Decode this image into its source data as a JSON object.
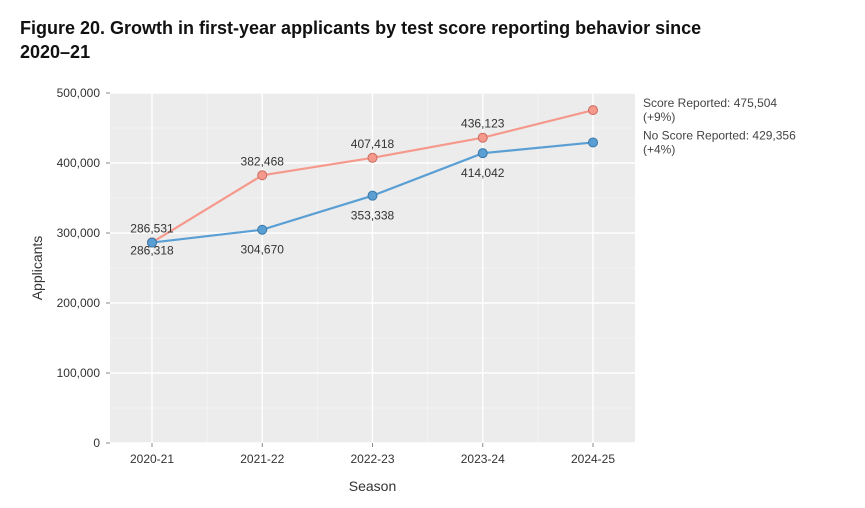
{
  "figure": {
    "title": "Figure 20. Growth in first-year applicants by test score reporting behavior since 2020–21"
  },
  "chart": {
    "type": "line",
    "plot_background": "#ececec",
    "grid_major_color": "#ffffff",
    "grid_minor_color": "#f5f5f5",
    "x": {
      "title": "Season",
      "categories": [
        "2020-21",
        "2021-22",
        "2022-23",
        "2023-24",
        "2024-25"
      ],
      "tick_fontsize": 12,
      "title_fontsize": 14
    },
    "y": {
      "title": "Applicants",
      "min": 0,
      "max": 500000,
      "tick_step": 100000,
      "minor_step": 50000,
      "tick_labels": [
        "0",
        "100,000",
        "200,000",
        "300,000",
        "400,000",
        "500,000"
      ],
      "tick_fontsize": 12,
      "title_fontsize": 14
    },
    "series": [
      {
        "key": "score_reported",
        "name": "Score Reported",
        "color": "#f6998d",
        "marker_fill": "#f6998d",
        "marker_stroke": "#c96a5d",
        "line_width": 2.2,
        "marker_radius": 4.5,
        "values": [
          286531,
          382468,
          407418,
          436123,
          475504
        ],
        "point_labels": [
          "286,531",
          "382,468",
          "407,418",
          "436,123",
          ""
        ],
        "end_label": "Score Reported: 475,504 (+9%)"
      },
      {
        "key": "no_score_reported",
        "name": "No Score Reported",
        "color": "#5a9fd4",
        "marker_fill": "#5a9fd4",
        "marker_stroke": "#3a78a6",
        "line_width": 2.2,
        "marker_radius": 4.5,
        "values": [
          286318,
          304670,
          353338,
          414042,
          429356
        ],
        "point_labels": [
          "286,318",
          "304,670",
          "353,338",
          "414,042",
          ""
        ],
        "end_label": "No Score Reported: 429,356 (+4%)"
      }
    ]
  }
}
